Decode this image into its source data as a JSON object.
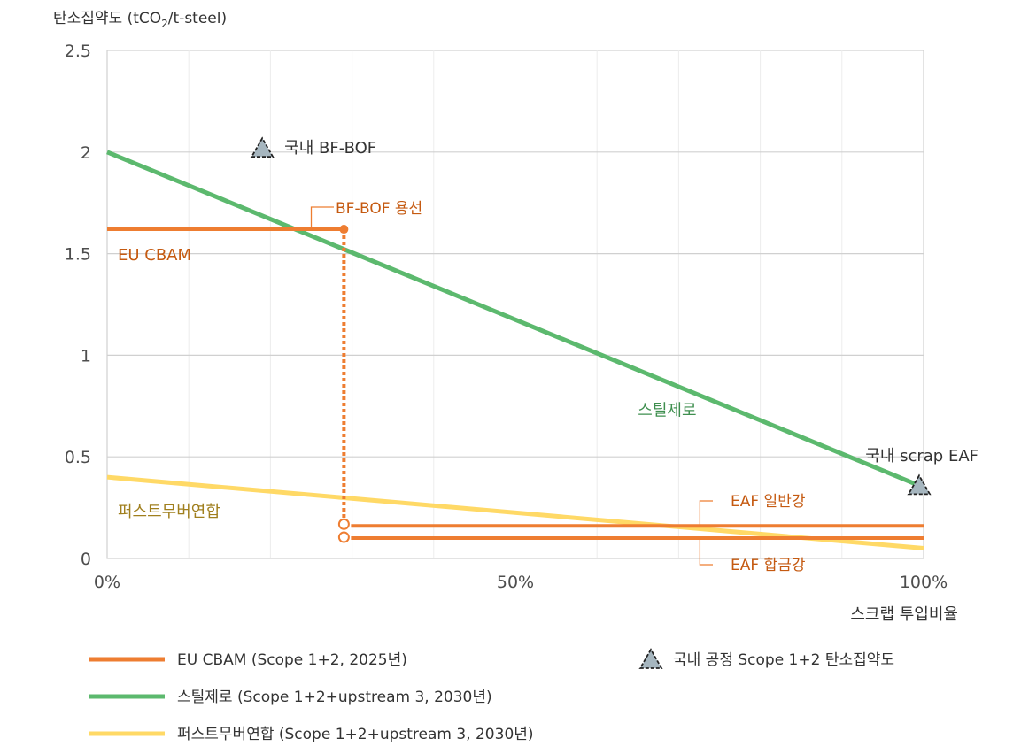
{
  "chart_data": {
    "type": "line",
    "ylabel_prefix": "탄소집약도 (tCO",
    "ylabel_sub": "2",
    "ylabel_suffix": "/t-steel)",
    "xlabel": "스크랩 투입비율",
    "xlim": [
      0,
      100
    ],
    "ylim": [
      0,
      2.5
    ],
    "x_ticks": [
      {
        "value": 0,
        "label": "0%"
      },
      {
        "value": 50,
        "label": "50%"
      },
      {
        "value": 100,
        "label": "100%"
      }
    ],
    "y_ticks": [
      {
        "value": 0,
        "label": "0"
      },
      {
        "value": 0.5,
        "label": "0.5"
      },
      {
        "value": 1,
        "label": "1"
      },
      {
        "value": 1.5,
        "label": "1.5"
      },
      {
        "value": 2,
        "label": "2"
      },
      {
        "value": 2.5,
        "label": "2.5"
      }
    ],
    "x_minor_gridlines": [
      10,
      20,
      30,
      40,
      60,
      70,
      80,
      90
    ],
    "series": [
      {
        "name": "스틸제로",
        "color": "#5cb96e",
        "x": [
          0,
          100
        ],
        "y": [
          2.0,
          0.35
        ],
        "label": "스틸제로",
        "label_at": [
          65,
          0.73
        ]
      },
      {
        "name": "퍼스트무버연합",
        "color": "#ffd966",
        "x": [
          0,
          100
        ],
        "y": [
          0.4,
          0.05
        ],
        "label": "퍼스트무버연합",
        "label_at": [
          1,
          0.23
        ]
      }
    ],
    "cbam": {
      "color": "#ee7d31",
      "label_color": "#c55a11",
      "label": "EU CBAM",
      "bf_bof": {
        "x_start": 0,
        "x_end": 29,
        "y": 1.62,
        "label": "BF-BOF 용선"
      },
      "eaf_general": {
        "x_start": 29,
        "x_end": 100,
        "y": 0.16,
        "label": "EAF 일반강"
      },
      "eaf_alloy": {
        "x_start": 29,
        "x_end": 100,
        "y": 0.1,
        "label": "EAF 합금강"
      }
    },
    "domestic_points": [
      {
        "label": "국내 BF-BOF",
        "x": 19,
        "y": 2.02
      },
      {
        "label": "국내 scrap EAF",
        "x": 100,
        "y": 0.36
      }
    ],
    "marker_fill": "#a6b6bf",
    "legend": {
      "items": [
        {
          "label": "EU CBAM (Scope 1+2, 2025년)",
          "color": "#ee7d31"
        },
        {
          "label": "스틸제로 (Scope 1+2+upstream 3, 2030년)",
          "color": "#5cb96e"
        },
        {
          "label": "퍼스트무버연합 (Scope 1+2+upstream 3, 2030년)",
          "color": "#ffd966"
        }
      ],
      "marker_label": "국내 공정 Scope 1+2 탄소집약도"
    }
  }
}
